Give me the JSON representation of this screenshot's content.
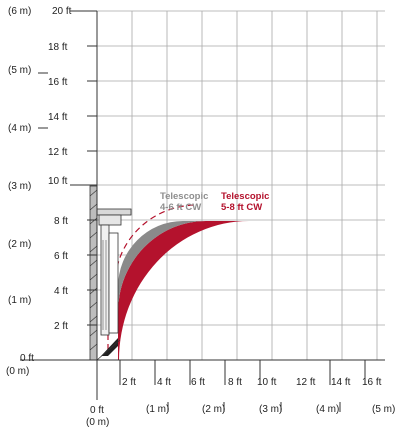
{
  "diagram": {
    "y_ft_labels": [
      "0 ft",
      "2 ft",
      "4 ft",
      "6 ft",
      "8 ft",
      "10 ft",
      "12 ft",
      "14 ft",
      "16 ft",
      "18 ft",
      "20 ft"
    ],
    "y_m_labels": [
      "(0 m)",
      "(1 m)",
      "(2 m)",
      "(3 m)",
      "(4 m)",
      "(5 m)",
      "(6 m)"
    ],
    "x_ft_labels": [
      "0 ft",
      "2 ft",
      "4 ft",
      "6 ft",
      "8 ft",
      "10 ft",
      "12 ft",
      "14 ft",
      "16 ft"
    ],
    "x_m_labels": [
      "(0 m)",
      "(1 m)",
      "(2 m)",
      "(3 m)",
      "(4 m)",
      "(5 m)"
    ],
    "zones": [
      {
        "name_line1": "Telescopic",
        "name_line2": "4-6 ft CW",
        "color": "#8a8a8a"
      },
      {
        "name_line1": "Telescopic",
        "name_line2": "5-8 ft CW",
        "color": "#b4122d"
      }
    ],
    "colors": {
      "grid": "#a9a9a9",
      "axis": "#333333",
      "grey_zone": "#8a8a8a",
      "red_zone": "#b4122d"
    }
  }
}
